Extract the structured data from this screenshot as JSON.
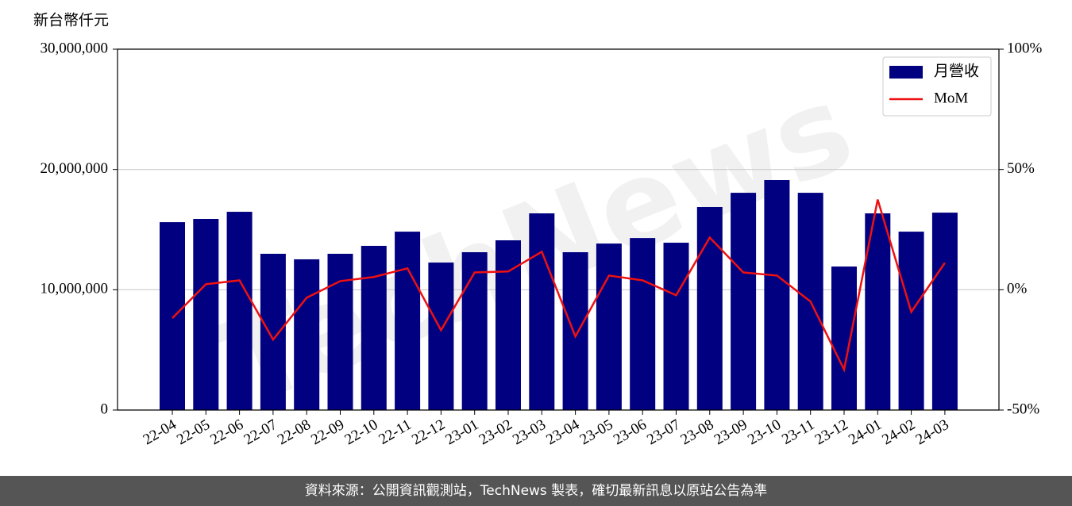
{
  "chart_data": {
    "type": "bar_line",
    "y_axis_label": "新台幣仟元",
    "watermark": "TechNews",
    "categories": [
      "22-04",
      "22-05",
      "22-06",
      "22-07",
      "22-08",
      "22-09",
      "22-10",
      "22-11",
      "22-12",
      "23-01",
      "23-02",
      "23-03",
      "23-04",
      "23-05",
      "23-06",
      "23-07",
      "23-08",
      "23-09",
      "23-10",
      "23-11",
      "23-12",
      "24-01",
      "24-02",
      "24-03"
    ],
    "series": [
      {
        "name": "月營收",
        "type": "bar",
        "color": "#000080",
        "values": [
          15620000,
          15890000,
          16480000,
          12990000,
          12530000,
          12990000,
          13650000,
          14830000,
          12260000,
          13120000,
          14110000,
          16350000,
          13120000,
          13840000,
          14300000,
          13910000,
          16880000,
          18060000,
          19120000,
          18060000,
          11930000,
          16350000,
          14830000,
          16410000
        ]
      },
      {
        "name": "MoM",
        "type": "line",
        "axis": "y2",
        "color": "#ee1111",
        "values": [
          -11.8,
          2.3,
          3.9,
          -20.7,
          -3.3,
          3.6,
          5.3,
          8.9,
          -16.8,
          7.2,
          7.6,
          15.8,
          -19.4,
          5.9,
          3.9,
          -2.3,
          21.7,
          7.2,
          5.9,
          -4.9,
          -33.2,
          37.5,
          -9.2,
          11.2
        ]
      }
    ],
    "ylim": [
      0,
      30000000
    ],
    "yticks": [
      0,
      {
        "value": 10000000,
        "label": "10,000,000"
      },
      {
        "value": 20000000,
        "label": "20,000,000"
      },
      {
        "value": 30000000,
        "label": "30,000,000"
      }
    ],
    "y2lim": [
      -50,
      100
    ],
    "y2ticks": [
      {
        "value": -50,
        "label": "-50%"
      },
      {
        "value": 0,
        "label": "0%"
      },
      {
        "value": 50,
        "label": "50%"
      },
      {
        "value": 100,
        "label": "100%"
      }
    ],
    "grid": true,
    "legend": "upper right",
    "footer": "資料來源：公開資訊觀測站，TechNews 製表，確切最新訊息以原站公告為準"
  }
}
